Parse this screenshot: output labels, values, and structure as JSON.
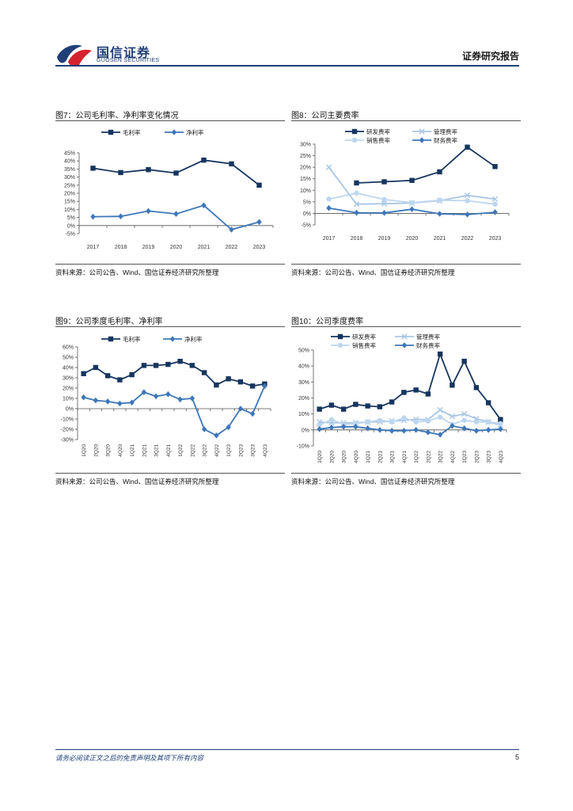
{
  "header": {
    "logo_cn": "国信证券",
    "logo_en": "GUOSEN SECURITIES",
    "report_type": "证券研究报告"
  },
  "colors": {
    "dark": "#16355f",
    "mid": "#3d77b8",
    "light": "#a9c6e6",
    "pale": "#bdd6ef",
    "axis": "#555555"
  },
  "figures": [
    {
      "title": "图7：公司毛利率、净利率变化情况",
      "source": "资料来源：公司公告、Wind、国信证券经济研究所整理"
    },
    {
      "title": "图8：公司主要费率",
      "source": "资料来源：公司公告、Wind、国信证券经济研究所整理"
    },
    {
      "title": "图9：公司季度毛利率、净利率",
      "source": "资料来源：公司公告、Wind、国信证券经济研究所整理"
    },
    {
      "title": "图10：公司季度费率",
      "source": "资料来源：公司公告、Wind、国信证券经济研究所整理"
    }
  ],
  "chart_data": [
    {
      "type": "line",
      "title": "图7：公司毛利率、净利率变化情况",
      "categories": [
        "2017",
        "2018",
        "2019",
        "2020",
        "2021",
        "2022",
        "2023"
      ],
      "ylim": [
        -5,
        45
      ],
      "yticks": [
        "-5%",
        "0%",
        "5%",
        "10%",
        "15%",
        "20%",
        "25%",
        "30%",
        "35%",
        "40%",
        "45%"
      ],
      "legend_position": "top",
      "series": [
        {
          "name": "毛利率",
          "marker": "square",
          "color": "dark",
          "values": [
            35.5,
            32.8,
            34.6,
            32.5,
            40.5,
            38.2,
            25.0
          ]
        },
        {
          "name": "净利率",
          "marker": "diamond",
          "color": "mid",
          "values": [
            5.5,
            5.7,
            9.0,
            7.2,
            12.5,
            -2.5,
            2.2
          ]
        }
      ]
    },
    {
      "type": "line",
      "title": "图8：公司主要费率",
      "categories": [
        "2017",
        "2018",
        "2019",
        "2020",
        "2021",
        "2022",
        "2023"
      ],
      "ylim": [
        -5,
        30
      ],
      "yticks": [
        "-5%",
        "0%",
        "5%",
        "10%",
        "15%",
        "20%",
        "25%",
        "30%"
      ],
      "legend_position": "top",
      "series": [
        {
          "name": "研发费率",
          "marker": "square",
          "color": "dark",
          "values": [
            null,
            13.2,
            13.7,
            14.3,
            18.0,
            28.7,
            20.3
          ]
        },
        {
          "name": "管理费率",
          "marker": "x",
          "color": "light",
          "values": [
            20.0,
            4.0,
            4.2,
            4.5,
            5.5,
            7.8,
            6.2
          ]
        },
        {
          "name": "销售费率",
          "marker": "circle",
          "color": "pale",
          "values": [
            6.2,
            8.8,
            6.0,
            4.6,
            5.7,
            5.5,
            4.0
          ]
        },
        {
          "name": "财务费率",
          "marker": "diamond",
          "color": "mid",
          "values": [
            2.3,
            0.3,
            0.2,
            1.8,
            -0.2,
            -0.5,
            0.5
          ]
        }
      ]
    },
    {
      "type": "line",
      "title": "图9：公司季度毛利率、净利率",
      "categories": [
        "1Q20",
        "2Q20",
        "3Q20",
        "4Q20",
        "1Q21",
        "2Q21",
        "3Q21",
        "4Q21",
        "1Q22",
        "2Q22",
        "3Q22",
        "4Q22",
        "1Q23",
        "2Q23",
        "3Q23",
        "4Q23"
      ],
      "ylim": [
        -30,
        60
      ],
      "yticks": [
        "-30%",
        "-20%",
        "-10%",
        "0%",
        "10%",
        "20%",
        "30%",
        "40%",
        "50%",
        "60%"
      ],
      "legend_position": "top",
      "series": [
        {
          "name": "毛利率",
          "marker": "square",
          "color": "dark",
          "values": [
            34,
            40,
            32,
            28,
            33,
            42,
            42,
            43,
            46,
            42,
            35,
            23,
            29,
            26,
            22,
            24
          ]
        },
        {
          "name": "净利率",
          "marker": "diamond",
          "color": "mid",
          "values": [
            11,
            8,
            7,
            5,
            6,
            16,
            12,
            14,
            9,
            10,
            -20,
            -26,
            -18,
            0,
            -5,
            22
          ]
        }
      ]
    },
    {
      "type": "line",
      "title": "图10：公司季度费率",
      "categories": [
        "1Q20",
        "2Q20",
        "3Q20",
        "4Q20",
        "1Q21",
        "2Q21",
        "3Q21",
        "4Q21",
        "1Q22",
        "2Q22",
        "3Q22",
        "4Q22",
        "1Q23",
        "2Q23",
        "3Q23",
        "4Q23"
      ],
      "ylim": [
        -10,
        50
      ],
      "yticks": [
        "-10%",
        "0%",
        "10%",
        "20%",
        "30%",
        "40%",
        "50%"
      ],
      "legend_position": "top",
      "series": [
        {
          "name": "研发费率",
          "marker": "square",
          "color": "dark",
          "values": [
            13,
            15.5,
            13,
            16,
            15,
            14.5,
            17.5,
            23.5,
            25,
            22.5,
            47.5,
            28,
            43,
            26.5,
            17,
            6.5
          ]
        },
        {
          "name": "管理费率",
          "marker": "x",
          "color": "light",
          "values": [
            5,
            4.5,
            4.5,
            4.5,
            5,
            5,
            5.5,
            6,
            6.5,
            6.5,
            12.5,
            8.5,
            10,
            7,
            5,
            3
          ]
        },
        {
          "name": "销售费率",
          "marker": "circle",
          "color": "pale",
          "values": [
            3,
            6.5,
            3.5,
            4,
            5,
            6,
            5,
            7.5,
            5,
            5.5,
            8,
            3.5,
            6,
            5,
            5,
            4
          ]
        },
        {
          "name": "财务费率",
          "marker": "diamond",
          "color": "mid",
          "values": [
            0.5,
            1.5,
            2,
            2,
            1,
            0,
            -0.5,
            -0.5,
            0,
            -1.5,
            -3,
            2.5,
            1,
            -0.5,
            0,
            0.5
          ]
        }
      ]
    }
  ],
  "footer": {
    "disclaimer": "请务必阅读正文之后的免责声明及其项下所有内容",
    "page": "5"
  }
}
